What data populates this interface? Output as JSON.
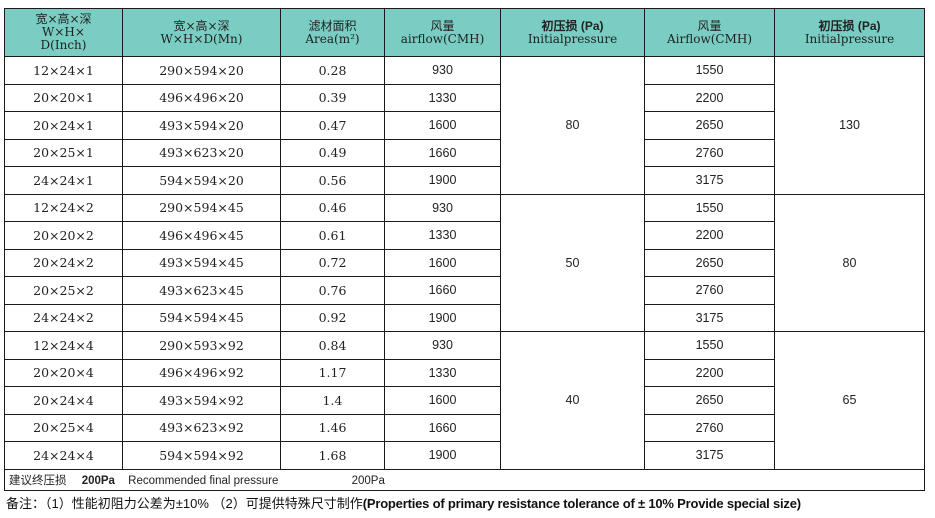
{
  "header": {
    "col1": [
      "宽×高×深",
      "W×H×",
      "D(Inch)"
    ],
    "col2": [
      "宽×高×深",
      "W×H×D(Mn)"
    ],
    "col3": [
      "滤材面积",
      "Area(m²)"
    ],
    "col4": [
      "风量",
      "airflow(CMH)"
    ],
    "col5": [
      "初压损 (Pa)",
      "Initialpressure"
    ],
    "col6": [
      "风量",
      "Airflow(CMH)"
    ],
    "col7": [
      "初压损 (Pa)",
      "Initialpressure"
    ]
  },
  "groups": [
    {
      "pressure1": "80",
      "pressure2": "130",
      "rows": [
        {
          "inch": "12×24×1",
          "mm": "290×594×20",
          "area": "0.28",
          "airflow1": "930",
          "airflow2": "1550"
        },
        {
          "inch": "20×20×1",
          "mm": "496×496×20",
          "area": "0.39",
          "airflow1": "1330",
          "airflow2": "2200"
        },
        {
          "inch": "20×24×1",
          "mm": "493×594×20",
          "area": "0.47",
          "airflow1": "1600",
          "airflow2": "2650"
        },
        {
          "inch": "20×25×1",
          "mm": "493×623×20",
          "area": "0.49",
          "airflow1": "1660",
          "airflow2": "2760"
        },
        {
          "inch": "24×24×1",
          "mm": "594×594×20",
          "area": "0.56",
          "airflow1": "1900",
          "airflow2": "3175"
        }
      ]
    },
    {
      "pressure1": "50",
      "pressure2": "80",
      "rows": [
        {
          "inch": "12×24×2",
          "mm": "290×594×45",
          "area": "0.46",
          "airflow1": "930",
          "airflow2": "1550"
        },
        {
          "inch": "20×20×2",
          "mm": "496×496×45",
          "area": "0.61",
          "airflow1": "1330",
          "airflow2": "2200"
        },
        {
          "inch": "20×24×2",
          "mm": "493×594×45",
          "area": "0.72",
          "airflow1": "1600",
          "airflow2": "2650"
        },
        {
          "inch": "20×25×2",
          "mm": "493×623×45",
          "area": "0.76",
          "airflow1": "1660",
          "airflow2": "2760"
        },
        {
          "inch": "24×24×2",
          "mm": "594×594×45",
          "area": "0.92",
          "airflow1": "1900",
          "airflow2": "3175"
        }
      ]
    },
    {
      "pressure1": "40",
      "pressure2": "65",
      "rows": [
        {
          "inch": "12×24×4",
          "mm": "290×593×92",
          "area": "0.84",
          "airflow1": "930",
          "airflow2": "1550"
        },
        {
          "inch": "20×20×4",
          "mm": "496×496×92",
          "area": "1.17",
          "airflow1": "1330",
          "airflow2": "2200"
        },
        {
          "inch": "20×24×4",
          "mm": "493×594×92",
          "area": "1.4",
          "airflow1": "1600",
          "airflow2": "2650"
        },
        {
          "inch": "20×25×4",
          "mm": "493×623×92",
          "area": "1.46",
          "airflow1": "1660",
          "airflow2": "2760"
        },
        {
          "inch": "24×24×4",
          "mm": "594×594×92",
          "area": "1.68",
          "airflow1": "1900",
          "airflow2": "3175"
        }
      ]
    }
  ],
  "recommend": {
    "label": "建议终压损",
    "value": "200Pa",
    "text": "Recommended final pressure",
    "value2": "200Pa"
  },
  "footnote": {
    "prefix": "备注：（1）性能初阻力公差为±10% （2）可提供特殊尺寸制作",
    "english": "(Properties of primary resistance tolerance of ± 10% Provide special size)"
  },
  "colors": {
    "header_bg": "#79cdc2",
    "border": "#1a1a1a"
  }
}
